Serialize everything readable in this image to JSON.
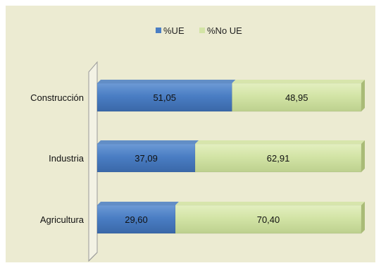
{
  "chart_data": {
    "type": "bar",
    "orientation": "horizontal",
    "stacked": "percent",
    "categories": [
      "Construcción",
      "Industria",
      "Agricultura"
    ],
    "series": [
      {
        "name": "%UE",
        "color": "#4a7ec4",
        "values": [
          51.05,
          37.09,
          29.6
        ],
        "labels": [
          "51,05",
          "37,09",
          "29,60"
        ]
      },
      {
        "name": "%No UE",
        "color": "#d3e4a6",
        "values": [
          48.95,
          62.91,
          70.4
        ],
        "labels": [
          "48,95",
          "62,91",
          "70,40"
        ]
      }
    ],
    "xlim": [
      0,
      100
    ],
    "legend_position": "top",
    "grid": false
  }
}
